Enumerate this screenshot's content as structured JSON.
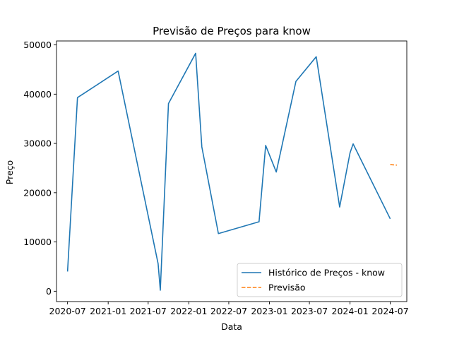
{
  "chart_data": {
    "type": "line",
    "title": "Previsão de Preços para know",
    "xlabel": "Data",
    "ylabel": "Preço",
    "x_tick_labels": [
      "2020-07",
      "2021-01",
      "2021-07",
      "2022-01",
      "2022-07",
      "2023-01",
      "2023-07",
      "2024-01",
      "2024-07"
    ],
    "y_tick_labels": [
      "0",
      "10000",
      "20000",
      "30000",
      "40000",
      "50000"
    ],
    "x_ticks": [
      "2020-07-01",
      "2021-01-01",
      "2021-07-01",
      "2022-01-01",
      "2022-07-01",
      "2023-01-01",
      "2023-07-01",
      "2024-01-01",
      "2024-07-01"
    ],
    "y_ticks": [
      0,
      10000,
      20000,
      30000,
      40000,
      50000
    ],
    "xlim": [
      "2020-05-12",
      "2024-09-14"
    ],
    "ylim": [
      -2100,
      50800
    ],
    "grid": false,
    "legend_position": "lower-right",
    "series": [
      {
        "name": "Histórico de Preços - know",
        "color": "#1f77b4",
        "style": "solid",
        "x": [
          "2020-07-01",
          "2020-08-15",
          "2021-02-15",
          "2021-08-15",
          "2021-08-25",
          "2021-10-01",
          "2022-02-01",
          "2022-03-01",
          "2022-05-15",
          "2022-11-15",
          "2022-12-15",
          "2023-02-01",
          "2023-05-01",
          "2023-08-01",
          "2023-11-15",
          "2024-01-01",
          "2024-01-15",
          "2024-07-01"
        ],
        "values": [
          4000,
          39300,
          44700,
          5600,
          200,
          38100,
          48300,
          29300,
          11700,
          14100,
          29600,
          24200,
          42600,
          47600,
          17100,
          28100,
          29900,
          14700
        ]
      },
      {
        "name": "Previsão",
        "color": "#ff7f0e",
        "style": "dashed",
        "x": [
          "2024-07-01",
          "2024-07-31"
        ],
        "values": [
          25700,
          25600
        ]
      }
    ]
  }
}
